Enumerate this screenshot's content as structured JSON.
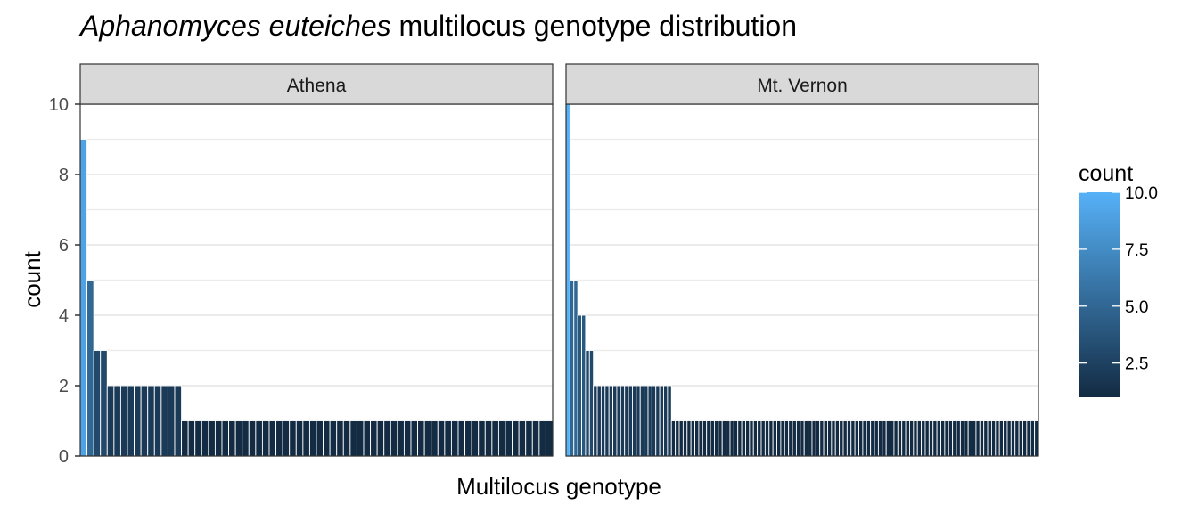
{
  "chart_data": {
    "type": "bar",
    "title": {
      "italic_part": "Aphanomyces euteiches",
      "rest": " multilocus genotype distribution"
    },
    "xlabel": "Multilocus genotype",
    "ylabel": "count",
    "ylim": [
      0,
      10
    ],
    "yticks": [
      "0",
      "2",
      "4",
      "6",
      "8",
      "10"
    ],
    "grid": true,
    "legend": {
      "title": "count",
      "placement": "right",
      "type": "continuous colorbar",
      "range": [
        1,
        10
      ],
      "ticks": [
        "2.5",
        "5.0",
        "7.5",
        "10.0"
      ],
      "low_color": "#132B43",
      "high_color": "#56B1F7"
    },
    "panels": [
      {
        "name": "Athena",
        "values": [
          9,
          5,
          3,
          3,
          2,
          2,
          2,
          2,
          2,
          2,
          2,
          2,
          2,
          2,
          2,
          1,
          1,
          1,
          1,
          1,
          1,
          1,
          1,
          1,
          1,
          1,
          1,
          1,
          1,
          1,
          1,
          1,
          1,
          1,
          1,
          1,
          1,
          1,
          1,
          1,
          1,
          1,
          1,
          1,
          1,
          1,
          1,
          1,
          1,
          1,
          1,
          1,
          1,
          1,
          1,
          1,
          1,
          1,
          1,
          1,
          1,
          1,
          1,
          1,
          1,
          1,
          1,
          1,
          1,
          1
        ]
      },
      {
        "name": "Mt. Vernon",
        "values": [
          10,
          5,
          5,
          4,
          4,
          3,
          3,
          2,
          2,
          2,
          2,
          2,
          2,
          2,
          2,
          2,
          2,
          2,
          2,
          2,
          2,
          2,
          2,
          2,
          2,
          2,
          2,
          1,
          1,
          1,
          1,
          1,
          1,
          1,
          1,
          1,
          1,
          1,
          1,
          1,
          1,
          1,
          1,
          1,
          1,
          1,
          1,
          1,
          1,
          1,
          1,
          1,
          1,
          1,
          1,
          1,
          1,
          1,
          1,
          1,
          1,
          1,
          1,
          1,
          1,
          1,
          1,
          1,
          1,
          1,
          1,
          1,
          1,
          1,
          1,
          1,
          1,
          1,
          1,
          1,
          1,
          1,
          1,
          1,
          1,
          1,
          1,
          1,
          1,
          1,
          1,
          1,
          1,
          1,
          1,
          1,
          1,
          1,
          1,
          1,
          1,
          1,
          1,
          1,
          1,
          1,
          1,
          1,
          1,
          1,
          1,
          1,
          1,
          1,
          1,
          1,
          1,
          1,
          1,
          1,
          1
        ]
      }
    ],
    "colors": {
      "strip_fill": "#d9d9d9",
      "panel_border": "#333333",
      "grid": "#ebebeb",
      "bar_outline": "#ffffff"
    }
  }
}
